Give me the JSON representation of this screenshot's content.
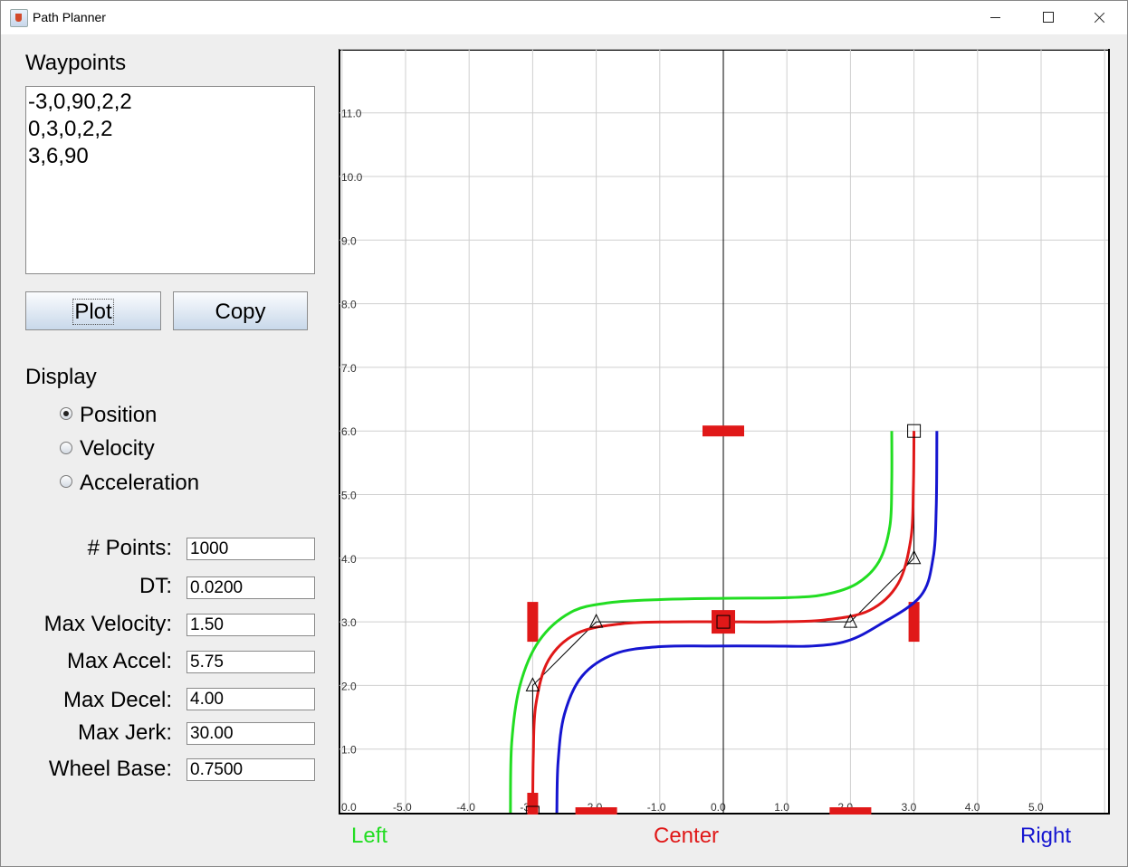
{
  "window": {
    "title": "Path Planner",
    "icon": "java-cup-icon"
  },
  "waypoints": {
    "label": "Waypoints",
    "lines": [
      "-3,0,90,2,2",
      "0,3,0,2,2",
      "3,6,90"
    ]
  },
  "buttons": {
    "plot": "Plot",
    "copy": "Copy"
  },
  "display": {
    "label": "Display",
    "options": [
      {
        "label": "Position",
        "checked": true
      },
      {
        "label": "Velocity",
        "checked": false
      },
      {
        "label": "Acceleration",
        "checked": false
      }
    ]
  },
  "fields": {
    "points": {
      "label": "# Points:",
      "value": "1000"
    },
    "dt": {
      "label": "DT:",
      "value": "0.0200"
    },
    "max_velocity": {
      "label": "Max Velocity:",
      "value": "1.50"
    },
    "max_accel": {
      "label": "Max Accel:",
      "value": "5.75"
    },
    "max_decel": {
      "label": "Max Decel:",
      "value": "4.00"
    },
    "max_jerk": {
      "label": "Max Jerk:",
      "value": "30.00"
    },
    "wheel_base": {
      "label": "Wheel Base:",
      "value": "0.7500"
    }
  },
  "legend": {
    "left": {
      "label": "Left",
      "color": "#22dd22"
    },
    "center": {
      "label": "Center",
      "color": "#e01818"
    },
    "right": {
      "label": "Right",
      "color": "#1515d0"
    }
  },
  "chart_data": {
    "type": "line",
    "xlim": [
      -6,
      6
    ],
    "ylim": [
      0,
      12
    ],
    "grid": true,
    "x_tick_labels": [
      "-5.0",
      "-4.0",
      "-3.0",
      "-2.0",
      "-1.0",
      "0.0",
      "1.0",
      "2.0",
      "3.0",
      "4.0",
      "5.0"
    ],
    "y_tick_labels": [
      "1.0",
      "2.0",
      "3.0",
      "4.0",
      "5.0",
      "6.0",
      "7.0",
      "8.0",
      "9.0",
      "10.0",
      "11.0"
    ],
    "origin_label": "0.0",
    "waypoints": [
      {
        "x": -3,
        "y": 0
      },
      {
        "x": 0,
        "y": 3
      },
      {
        "x": 3,
        "y": 6
      }
    ],
    "control_points": [
      {
        "x": -3,
        "y": 2
      },
      {
        "x": -2,
        "y": 3
      },
      {
        "x": 2,
        "y": 3
      },
      {
        "x": 3,
        "y": 4
      }
    ],
    "series": [
      {
        "name": "Left",
        "color": "#22dd22",
        "points": [
          [
            -3.35,
            0
          ],
          [
            -3.33,
            1.1
          ],
          [
            -3.2,
            2.0
          ],
          [
            -2.9,
            2.7
          ],
          [
            -2.4,
            3.15
          ],
          [
            -1.8,
            3.3
          ],
          [
            -1,
            3.35
          ],
          [
            0,
            3.37
          ],
          [
            1,
            3.38
          ],
          [
            1.6,
            3.43
          ],
          [
            2.1,
            3.6
          ],
          [
            2.45,
            3.95
          ],
          [
            2.62,
            4.5
          ],
          [
            2.65,
            5.2
          ],
          [
            2.65,
            6
          ]
        ]
      },
      {
        "name": "Center",
        "color": "#e01818",
        "points": [
          [
            -3,
            0
          ],
          [
            -2.99,
            0.9
          ],
          [
            -2.95,
            1.7
          ],
          [
            -2.75,
            2.4
          ],
          [
            -2.3,
            2.82
          ],
          [
            -1.6,
            2.97
          ],
          [
            -0.8,
            3
          ],
          [
            0,
            3
          ],
          [
            0.8,
            3
          ],
          [
            1.6,
            3.03
          ],
          [
            2.3,
            3.18
          ],
          [
            2.75,
            3.6
          ],
          [
            2.95,
            4.3
          ],
          [
            2.99,
            5.1
          ],
          [
            3,
            6
          ]
        ]
      },
      {
        "name": "Right",
        "color": "#1515d0",
        "points": [
          [
            -2.62,
            0
          ],
          [
            -2.6,
            0.8
          ],
          [
            -2.5,
            1.55
          ],
          [
            -2.22,
            2.15
          ],
          [
            -1.7,
            2.5
          ],
          [
            -1,
            2.61
          ],
          [
            -0.2,
            2.62
          ],
          [
            0.7,
            2.62
          ],
          [
            1.4,
            2.62
          ],
          [
            1.95,
            2.7
          ],
          [
            2.45,
            2.95
          ],
          [
            3.1,
            3.4
          ],
          [
            3.3,
            4.0
          ],
          [
            3.35,
            4.8
          ],
          [
            3.36,
            6
          ]
        ]
      }
    ]
  }
}
